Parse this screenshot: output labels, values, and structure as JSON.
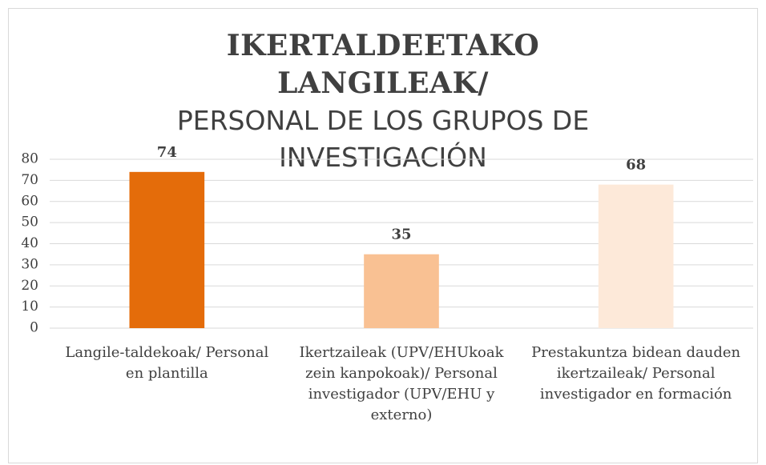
{
  "chart_data": {
    "type": "bar",
    "title": "IKERTALDEETAKO LANGILEAK/",
    "subtitle": "PERSONAL DE LOS GRUPOS DE INVESTIGACIÓN",
    "categories": [
      "Langile-taldekoak/ Personal en plantilla",
      "Ikertzaileak (UPV/EHUkoak zein kanpokoak)/ Personal investigador (UPV/EHU y externo)",
      "Prestakuntza bidean dauden ikertzaileak/ Personal investigador en formación"
    ],
    "values": [
      74,
      35,
      68
    ],
    "colors": [
      "#e46c0a",
      "#f9c193",
      "#fde9d9"
    ],
    "ylim": [
      0,
      80
    ],
    "yticks": [
      0,
      10,
      20,
      30,
      40,
      50,
      60,
      70,
      80
    ],
    "grid": true
  }
}
